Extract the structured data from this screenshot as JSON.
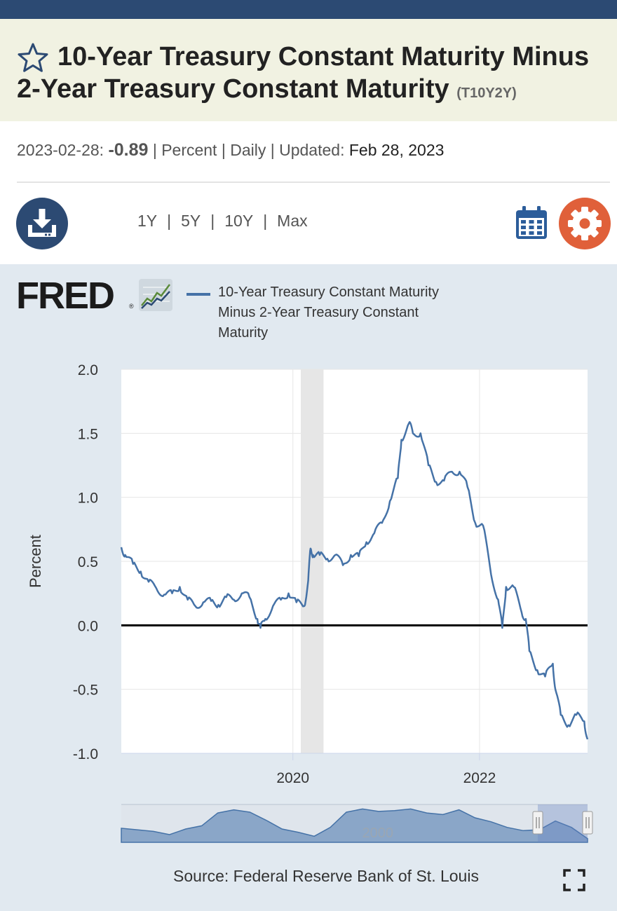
{
  "header": {
    "title": "10-Year Treasury Constant Maturity Minus 2-Year Treasury Constant Maturity",
    "series_id": "(T10Y2Y)"
  },
  "meta": {
    "date": "2023-02-28:",
    "latest_value": "-0.89",
    "units": "Percent",
    "frequency": "Daily",
    "updated_label": "Updated:",
    "updated_date": "Feb 28, 2023",
    "separator": "|"
  },
  "toolbar": {
    "ranges": [
      "1Y",
      "5Y",
      "10Y",
      "Max"
    ],
    "separator": "|"
  },
  "logo": {
    "text": "FRED",
    "reg": "®"
  },
  "legend": {
    "series_name": "10-Year Treasury Constant Maturity Minus 2-Year Treasury Constant Maturity"
  },
  "footer": {
    "source": "Source: Federal Reserve Bank of St. Louis"
  },
  "colors": {
    "header_bar": "#2c4a73",
    "title_band": "#f1f2e2",
    "series_line": "#4572a7",
    "graph_background": "#e1e9f0",
    "recession_shade": "#e6e6e6",
    "settings_button": "#e0603a"
  },
  "icons": {
    "favorite": "star-icon",
    "download": "download-icon",
    "calendar": "calendar-icon",
    "settings": "gear-icon",
    "fullscreen": "fullscreen-icon"
  },
  "chart_data": {
    "type": "line",
    "ylabel": "Percent",
    "yticks": [
      "2.0",
      "1.5",
      "1.0",
      "0.5",
      "0.0",
      "-0.5",
      "-1.0"
    ],
    "ylim": [
      -1.0,
      2.0
    ],
    "xticks": [
      {
        "label": "2020",
        "value": "2020-01-01"
      },
      {
        "label": "2022",
        "value": "2022-01-01"
      }
    ],
    "xlim": [
      "2018-02-28",
      "2023-02-28"
    ],
    "grid": true,
    "legend": "top",
    "zero_line": true,
    "recession_shading": [
      {
        "start": "2020-02-01",
        "end": "2020-04-30"
      }
    ],
    "series": [
      {
        "name": "10-Year Treasury Constant Maturity Minus 2-Year Treasury Constant Maturity",
        "x": [
          "2018-02-28",
          "2018-03-15",
          "2018-04-15",
          "2018-05-15",
          "2018-06-15",
          "2018-07-15",
          "2018-08-15",
          "2018-09-15",
          "2018-10-15",
          "2018-11-15",
          "2018-12-15",
          "2019-01-15",
          "2019-02-15",
          "2019-03-15",
          "2019-04-15",
          "2019-05-15",
          "2019-06-15",
          "2019-07-15",
          "2019-08-15",
          "2019-08-27",
          "2019-09-15",
          "2019-10-15",
          "2019-11-15",
          "2019-12-15",
          "2020-01-15",
          "2020-02-15",
          "2020-03-01",
          "2020-03-10",
          "2020-03-20",
          "2020-04-15",
          "2020-05-15",
          "2020-06-15",
          "2020-07-15",
          "2020-08-15",
          "2020-09-15",
          "2020-10-15",
          "2020-11-15",
          "2020-12-15",
          "2021-01-15",
          "2021-02-15",
          "2021-03-01",
          "2021-03-31",
          "2021-04-15",
          "2021-05-15",
          "2021-06-15",
          "2021-07-15",
          "2021-08-15",
          "2021-09-15",
          "2021-10-15",
          "2021-11-15",
          "2021-12-15",
          "2022-01-15",
          "2022-02-15",
          "2022-03-15",
          "2022-03-31",
          "2022-04-15",
          "2022-05-15",
          "2022-06-15",
          "2022-07-01",
          "2022-07-15",
          "2022-08-15",
          "2022-09-15",
          "2022-10-15",
          "2022-10-25",
          "2022-11-15",
          "2022-12-15",
          "2023-01-15",
          "2023-02-15",
          "2023-02-28"
        ],
        "values": [
          0.61,
          0.55,
          0.48,
          0.42,
          0.34,
          0.29,
          0.24,
          0.25,
          0.3,
          0.2,
          0.15,
          0.18,
          0.19,
          0.16,
          0.22,
          0.2,
          0.25,
          0.22,
          0.05,
          -0.02,
          0.05,
          0.15,
          0.2,
          0.25,
          0.18,
          0.15,
          0.35,
          0.6,
          0.55,
          0.55,
          0.52,
          0.55,
          0.47,
          0.55,
          0.54,
          0.65,
          0.72,
          0.8,
          0.97,
          1.15,
          1.45,
          1.58,
          1.5,
          1.5,
          1.25,
          1.12,
          1.13,
          1.2,
          1.2,
          1.08,
          0.8,
          0.78,
          0.4,
          0.2,
          -0.02,
          0.3,
          0.3,
          0.1,
          0.05,
          -0.2,
          -0.35,
          -0.4,
          -0.3,
          -0.5,
          -0.7,
          -0.78,
          -0.7,
          -0.75,
          -0.89
        ]
      }
    ],
    "navigator": {
      "label": "2000",
      "selected_range": [
        "2018-02-28",
        "2023-02-28"
      ],
      "values": [
        0.5,
        0.3,
        0.1,
        -0.3,
        0.4,
        0.8,
        2.4,
        2.8,
        2.5,
        1.5,
        0.4,
        0.0,
        -0.5,
        0.6,
        2.5,
        2.9,
        2.6,
        2.7,
        2.9,
        2.4,
        2.2,
        2.8,
        1.8,
        1.3,
        0.6,
        0.2,
        0.3,
        1.4,
        0.6,
        -0.8
      ]
    }
  }
}
